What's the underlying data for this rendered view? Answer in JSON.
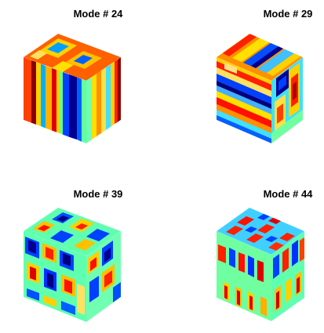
{
  "figure": {
    "colormap": "jet",
    "panels": [
      {
        "title": "Mode # 24",
        "mode": 24
      },
      {
        "title": "Mode # 29",
        "mode": 29
      },
      {
        "title": "Mode # 39",
        "mode": 39
      },
      {
        "title": "Mode # 44",
        "mode": 44
      }
    ]
  }
}
